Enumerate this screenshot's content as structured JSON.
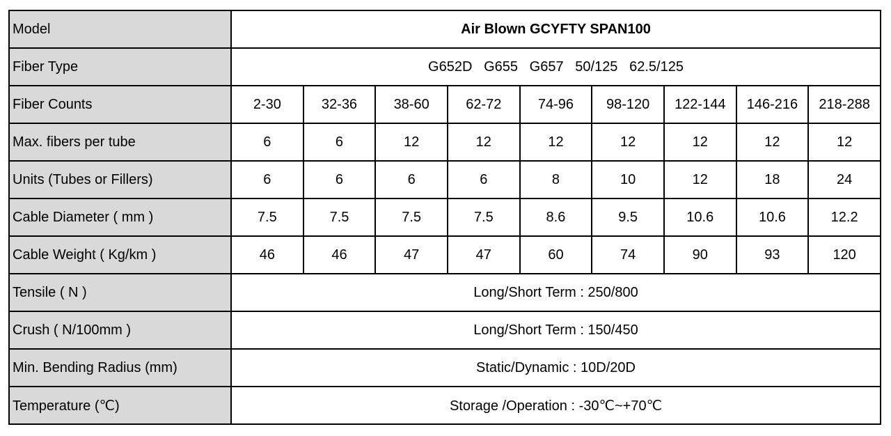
{
  "table": {
    "model": {
      "label": "Model",
      "value": "Air Blown GCYFTY SPAN100"
    },
    "fiber_type": {
      "label": "Fiber Type",
      "value": "G652D   G655   G657   50/125   62.5/125"
    },
    "fiber_counts": {
      "label": "Fiber Counts",
      "values": [
        "2-30",
        "32-36",
        "38-60",
        "62-72",
        "74-96",
        "98-120",
        "122-144",
        "146-216",
        "218-288"
      ]
    },
    "max_fibers_per_tube": {
      "label": "Max. fibers per tube",
      "values": [
        "6",
        "6",
        "12",
        "12",
        "12",
        "12",
        "12",
        "12",
        "12"
      ]
    },
    "units": {
      "label": "Units (Tubes or Fillers)",
      "values": [
        "6",
        "6",
        "6",
        "6",
        "8",
        "10",
        "12",
        "18",
        "24"
      ]
    },
    "cable_diameter": {
      "label": "Cable Diameter ( mm )",
      "values": [
        "7.5",
        "7.5",
        "7.5",
        "7.5",
        "8.6",
        "9.5",
        "10.6",
        "10.6",
        "12.2"
      ]
    },
    "cable_weight": {
      "label": "Cable Weight ( Kg/km )",
      "values": [
        "46",
        "46",
        "47",
        "47",
        "60",
        "74",
        "90",
        "93",
        "120"
      ]
    },
    "tensile": {
      "label": "Tensile ( N )",
      "value": "Long/Short Term : 250/800"
    },
    "crush": {
      "label": "Crush ( N/100mm )",
      "value": "Long/Short Term : 150/450"
    },
    "bending_radius": {
      "label": "Min. Bending Radius (mm)",
      "value": "Static/Dynamic : 10D/20D"
    },
    "temperature": {
      "label": "Temperature (℃)",
      "value": "Storage /Operation : -30℃~+70℃"
    }
  }
}
